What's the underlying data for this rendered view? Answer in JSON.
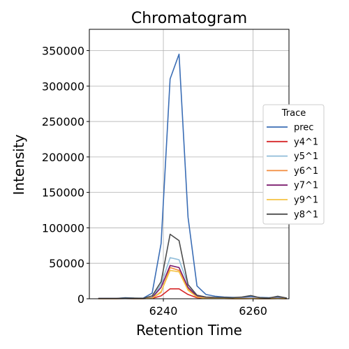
{
  "chart_data": {
    "type": "line",
    "title": "Chromatogram",
    "xlabel": "Retention Time",
    "ylabel": "Intensity",
    "xlim": [
      6223.5,
      6268
    ],
    "ylim": [
      0,
      380000
    ],
    "x_ticks": [
      6240,
      6260
    ],
    "y_ticks": [
      0,
      50000,
      100000,
      150000,
      200000,
      250000,
      300000,
      350000
    ],
    "x_tick_labels": [
      "6240",
      "6260"
    ],
    "y_tick_labels": [
      "0",
      "50000",
      "100000",
      "150000",
      "200000",
      "250000",
      "300000",
      "350000"
    ],
    "grid": true,
    "legend": {
      "title": "Trace",
      "placement": "outside-right"
    },
    "x": [
      6225.5,
      6227.5,
      6229.5,
      6231.5,
      6233.5,
      6235.5,
      6237.5,
      6239.5,
      6241.5,
      6243.5,
      6245.5,
      6247.5,
      6249.5,
      6251.5,
      6253.5,
      6255.5,
      6257.5,
      6259.5,
      6261.5,
      6263.5,
      6265.5,
      6267.5
    ],
    "series": [
      {
        "name": "prec",
        "color": "#3a6db5",
        "values": [
          500,
          500,
          500,
          1500,
          1000,
          800,
          8000,
          78000,
          310000,
          345000,
          115000,
          18000,
          6000,
          3500,
          2500,
          2000,
          2000,
          3000,
          2000,
          1500,
          2500,
          1000
        ]
      },
      {
        "name": "y4^1",
        "color": "#d62728",
        "values": [
          200,
          200,
          200,
          300,
          200,
          200,
          500,
          4000,
          14000,
          14000,
          6000,
          1500,
          500,
          300,
          300,
          200,
          200,
          300,
          200,
          200,
          300,
          200
        ]
      },
      {
        "name": "y5^1",
        "color": "#8fbcd9",
        "values": [
          300,
          300,
          300,
          500,
          300,
          300,
          2000,
          20000,
          58000,
          55000,
          20000,
          4000,
          1000,
          600,
          400,
          300,
          300,
          400,
          300,
          300,
          400,
          300
        ]
      },
      {
        "name": "y6^1",
        "color": "#f28b3c",
        "values": [
          200,
          200,
          200,
          300,
          200,
          200,
          1000,
          9000,
          44000,
          40000,
          14000,
          3000,
          800,
          400,
          300,
          200,
          200,
          300,
          200,
          200,
          300,
          200
        ]
      },
      {
        "name": "y7^1",
        "color": "#7b1c6e",
        "values": [
          300,
          300,
          300,
          500,
          300,
          300,
          1500,
          16000,
          47000,
          44000,
          16000,
          3500,
          1000,
          500,
          400,
          300,
          300,
          400,
          300,
          300,
          400,
          300
        ]
      },
      {
        "name": "y9^1",
        "color": "#f5c242",
        "values": [
          200,
          200,
          200,
          400,
          200,
          200,
          1000,
          10000,
          40000,
          38000,
          12000,
          2500,
          600,
          400,
          300,
          200,
          200,
          300,
          200,
          200,
          300,
          200
        ]
      },
      {
        "name": "y8^1",
        "color": "#4d4d4d",
        "values": [
          500,
          500,
          500,
          1000,
          800,
          600,
          4000,
          24000,
          91000,
          82000,
          20000,
          5000,
          2500,
          2000,
          1800,
          1500,
          2500,
          4500,
          1500,
          1000,
          3500,
          1000
        ]
      }
    ]
  }
}
